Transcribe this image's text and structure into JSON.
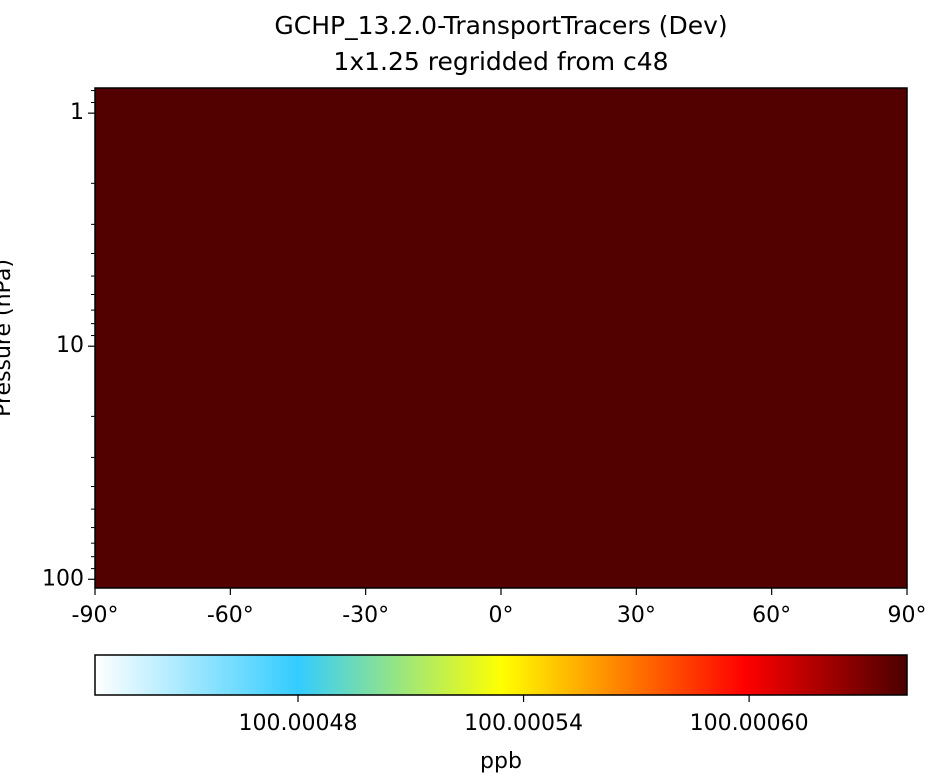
{
  "chart_data": {
    "type": "heatmap",
    "title": "GCHP_13.2.0-TransportTracers (Dev)",
    "subtitle": "1x1.25 regridded from c48",
    "ylabel": "Pressure (hPa)",
    "x_edges": [
      -90,
      90
    ],
    "y_edges": [
      109,
      0.78
    ],
    "z": [
      [
        100.00064
      ]
    ],
    "xlim": [
      -90,
      90
    ],
    "xticks": [
      {
        "value": -90,
        "label": "-90°"
      },
      {
        "value": -60,
        "label": "-60°"
      },
      {
        "value": -30,
        "label": "-30°"
      },
      {
        "value": 0,
        "label": "0°"
      },
      {
        "value": 30,
        "label": "30°"
      },
      {
        "value": 60,
        "label": "60°"
      },
      {
        "value": 90,
        "label": "90°"
      }
    ],
    "ylim": [
      109,
      0.78
    ],
    "ylog": true,
    "yticks": [
      1,
      10,
      100
    ],
    "yminorticks": [
      0.8,
      0.9,
      2,
      3,
      4,
      5,
      6,
      7,
      8,
      9,
      20,
      30,
      40,
      50,
      60,
      70,
      80,
      90
    ],
    "colorbar": {
      "label": "ppb",
      "clim": [
        100.000426,
        100.000642
      ],
      "ticks": [
        100.00048,
        100.00054,
        {
          "value": 100.0006,
          "label": "100.00060"
        }
      ],
      "colormap": [
        [
          0,
          "#ffffff"
        ],
        [
          0.25,
          "#33ccff"
        ],
        [
          0.5,
          "#ffff00"
        ],
        [
          0.8,
          "#ff0000"
        ],
        [
          1,
          "#4a0000"
        ]
      ]
    }
  }
}
